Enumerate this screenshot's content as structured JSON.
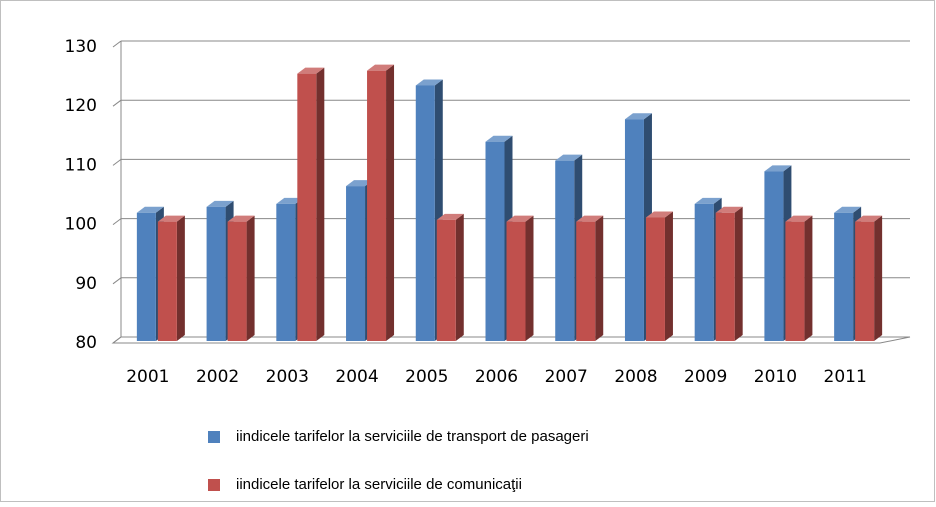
{
  "chart_data": {
    "type": "bar3d",
    "categories": [
      "2001",
      "2002",
      "2003",
      "2004",
      "2005",
      "2006",
      "2007",
      "2008",
      "2009",
      "2010",
      "2011"
    ],
    "series": [
      {
        "name": "iindicele tarifelor la serviciile de transport de pasageri",
        "color": "#4f81bd",
        "values": [
          102,
          103,
          103.5,
          106.5,
          123.5,
          114,
          110.8,
          117.8,
          103.5,
          109,
          102
        ]
      },
      {
        "name": "iindicele tarifelor la serviciile de comunicaţii",
        "color": "#c0504d",
        "values": [
          100.5,
          100.5,
          125.5,
          126,
          100.8,
          100.5,
          100.5,
          101.2,
          102,
          100.5,
          100.5
        ]
      }
    ],
    "ylim": [
      80,
      130
    ],
    "yticks": [
      80,
      90,
      100,
      110,
      120,
      130
    ],
    "grid": true,
    "legend": "bottom"
  }
}
